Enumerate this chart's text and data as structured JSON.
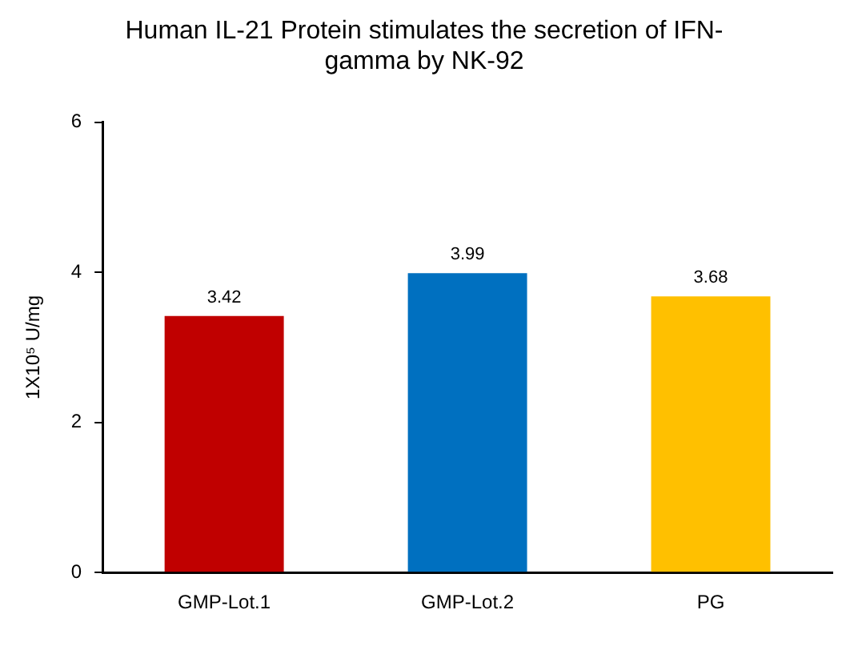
{
  "chart_data": {
    "type": "bar",
    "title": "Human IL-21 Protein stimulates the secretion of IFN-gamma by NK-92",
    "ylabel": "1X10⁵ U/mg",
    "categories": [
      "GMP-Lot.1",
      "GMP-Lot.2",
      "PG"
    ],
    "values": [
      3.42,
      3.99,
      3.68
    ],
    "colors": [
      "#c00000",
      "#0070c0",
      "#ffc000"
    ],
    "ylim": [
      0,
      6
    ],
    "yticks": [
      0,
      2,
      4,
      6
    ],
    "grid": false,
    "legend": false,
    "data_labels": true
  }
}
